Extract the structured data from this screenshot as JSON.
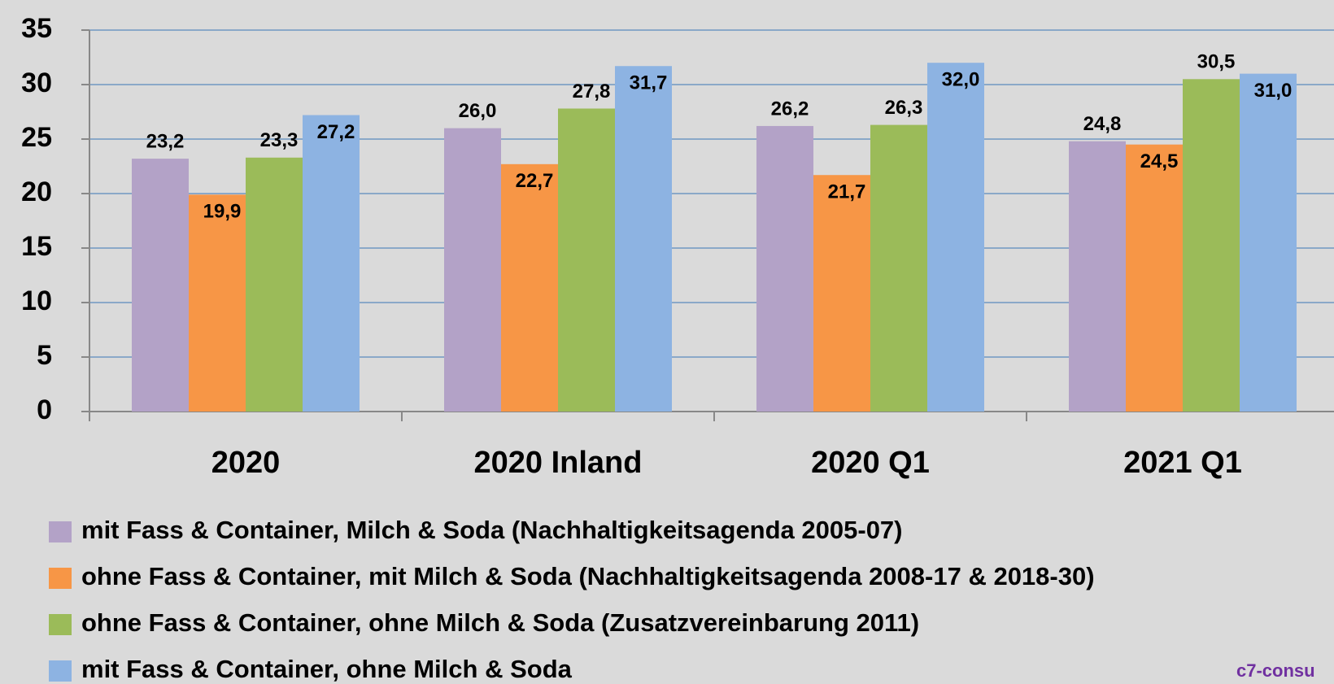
{
  "chart_data": {
    "type": "bar",
    "categories": [
      "2020",
      "2020 Inland",
      "2020 Q1",
      "2021 Q1"
    ],
    "series": [
      {
        "name": "mit Fass & Container, Milch & Soda (Nachhaltigkeitsagenda 2005-07)",
        "color": "#b3a2c7",
        "values": [
          23.2,
          26.0,
          26.2,
          24.8
        ],
        "value_labels": [
          "23,2",
          "26,0",
          "26,2",
          "24,8"
        ]
      },
      {
        "name": "ohne Fass & Container, mit Milch & Soda (Nachhaltigkeitsagenda 2008-17 & 2018-30)",
        "color": "#f79646",
        "values": [
          19.9,
          22.7,
          21.7,
          24.5
        ],
        "value_labels": [
          "19,9",
          "22,7",
          "21,7",
          "24,5"
        ]
      },
      {
        "name": "ohne Fass & Container, ohne Milch & Soda (Zusatzvereinbarung 2011)",
        "color": "#9bbb59",
        "values": [
          23.3,
          27.8,
          26.3,
          30.5
        ],
        "value_labels": [
          "23,3",
          "27,8",
          "26,3",
          "30,5"
        ]
      },
      {
        "name": "mit Fass & Container, ohne Milch & Soda",
        "color": "#8db3e2",
        "values": [
          27.2,
          31.7,
          32.0,
          31.0
        ],
        "value_labels": [
          "27,2",
          "31,7",
          "32,0",
          "31,0"
        ]
      }
    ],
    "ylim": [
      0,
      35
    ],
    "yticks": [
      0,
      5,
      10,
      15,
      20,
      25,
      30,
      35
    ],
    "grid": true,
    "legend": "bottom-left",
    "annotation": "c7-consu"
  }
}
